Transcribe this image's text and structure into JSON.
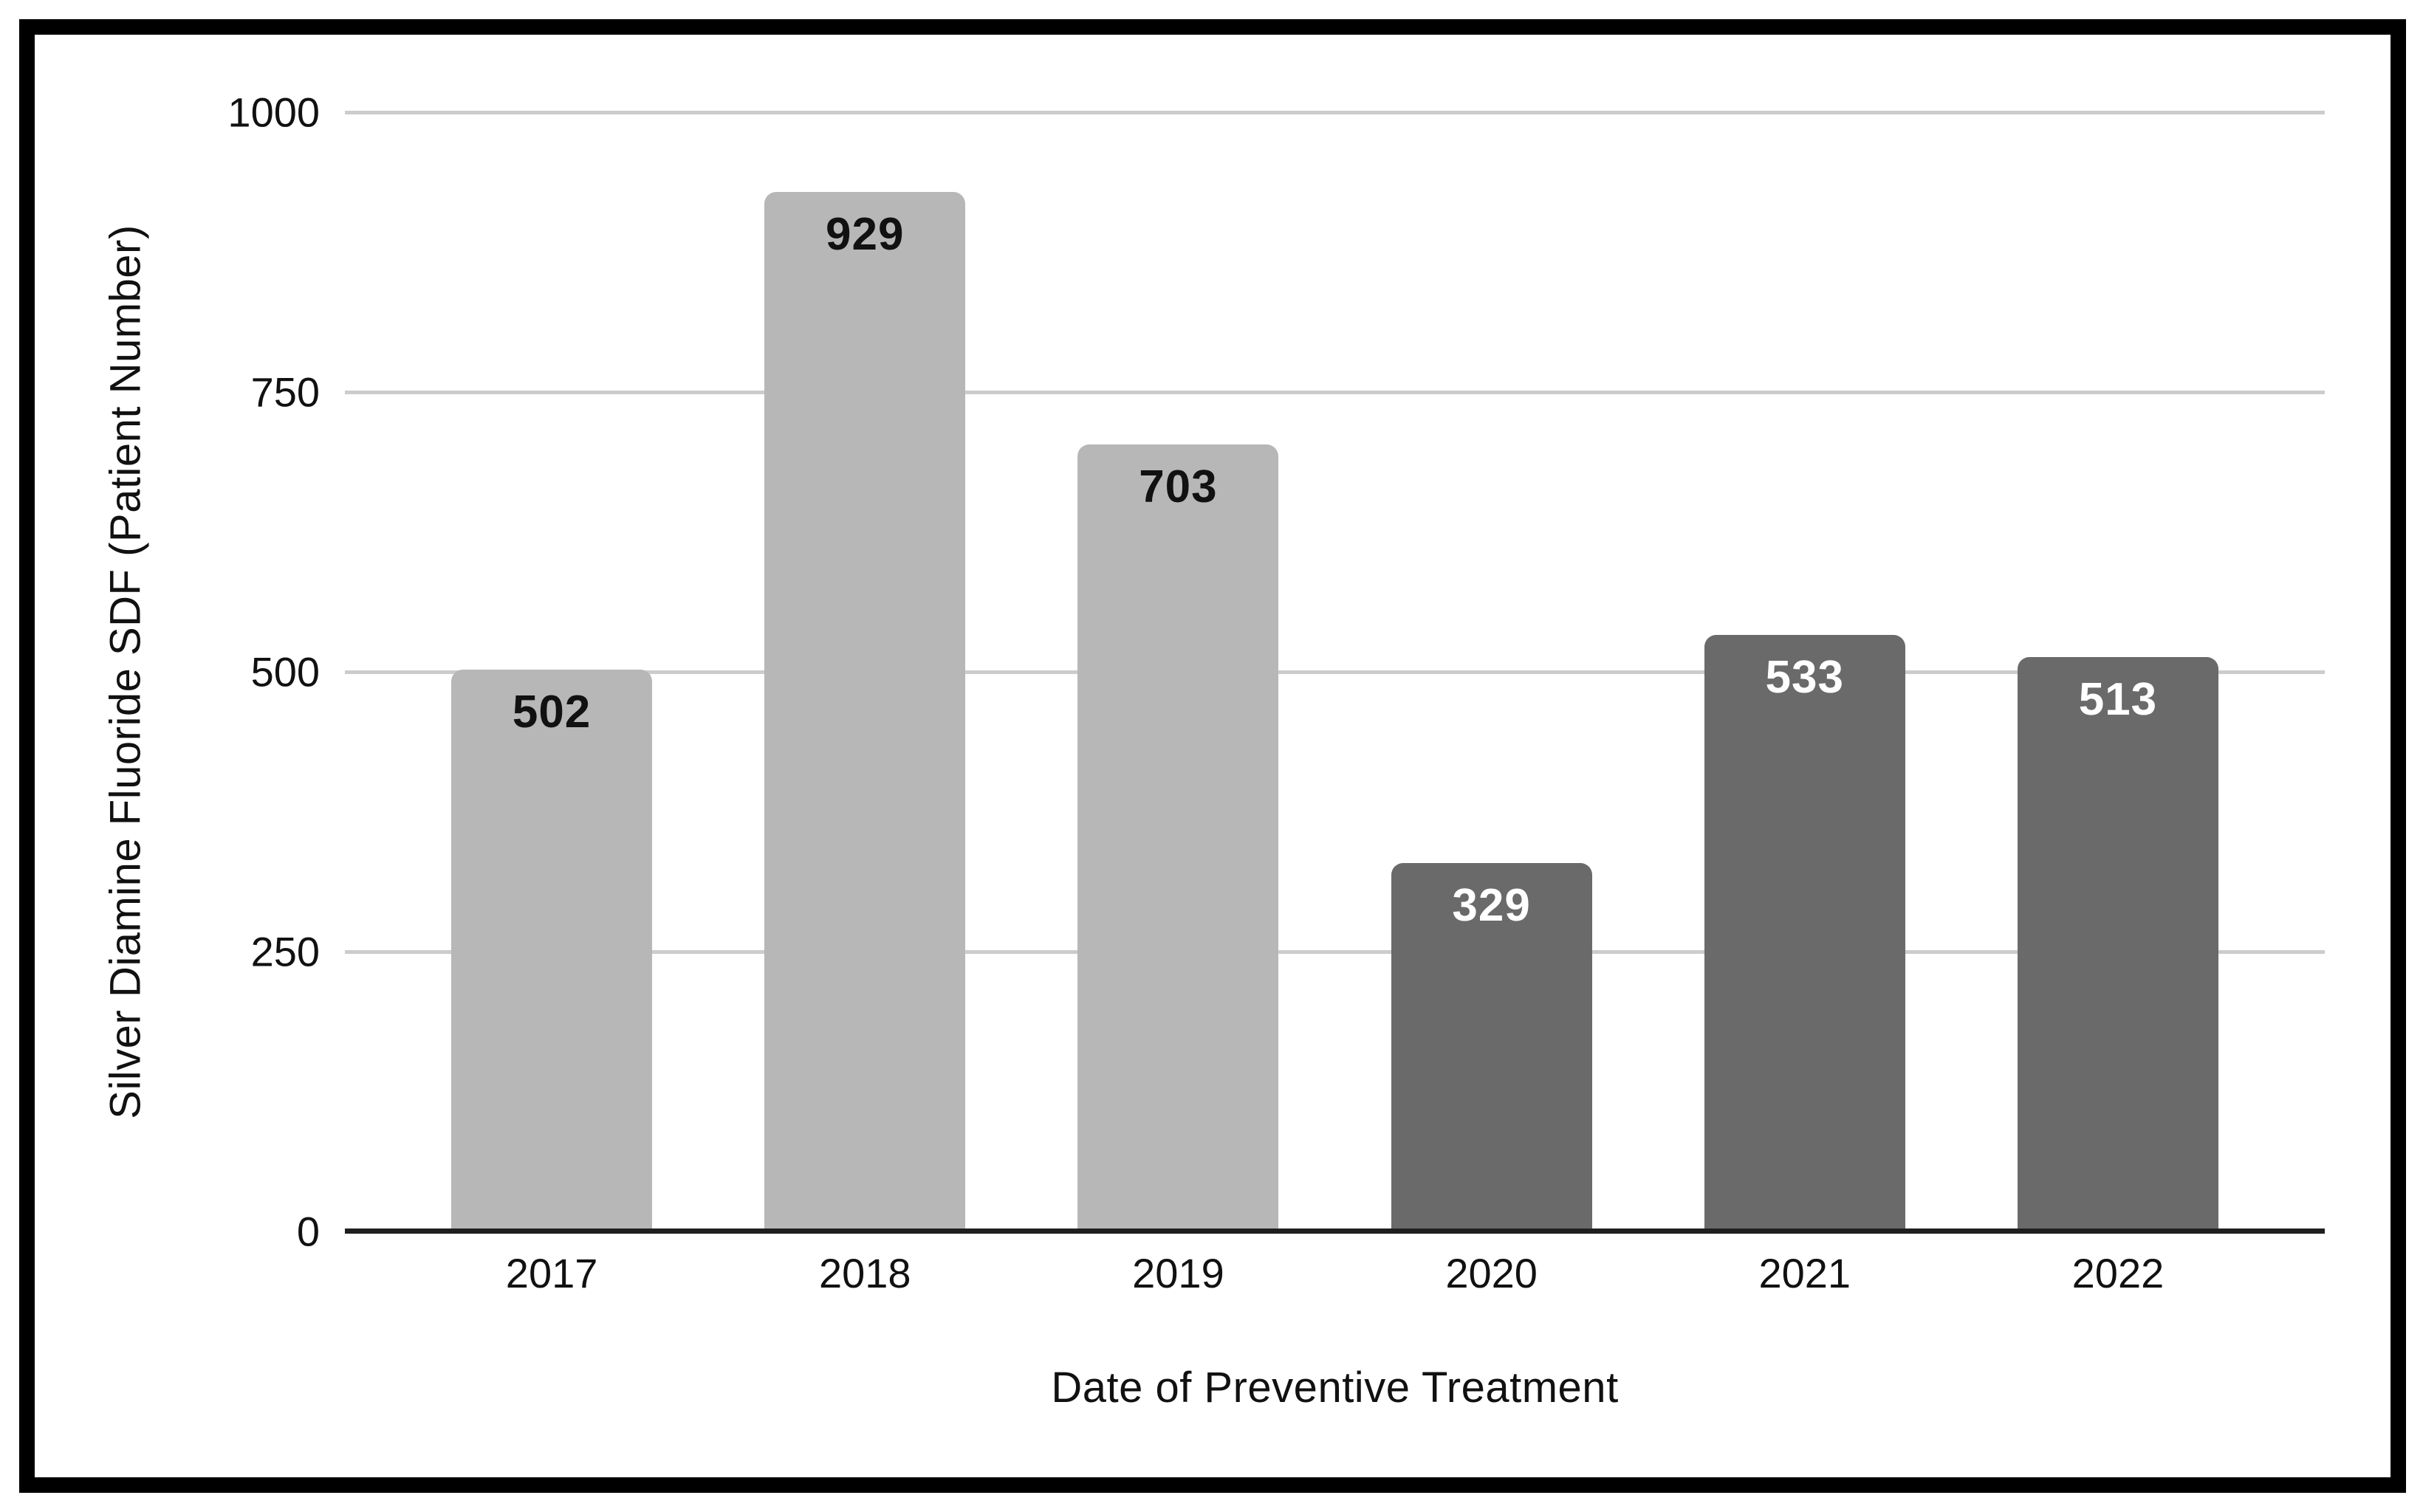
{
  "figure": {
    "background_color": "#ffffff",
    "frame_border_color": "#000000",
    "text_color": "#111111"
  },
  "chart_data": {
    "type": "bar",
    "title": "",
    "xlabel": "Date of Preventive Treatment",
    "ylabel": "Silver Diamine Fluoride SDF (Patient Number)",
    "categories": [
      "2017",
      "2018",
      "2019",
      "2020",
      "2021",
      "2022"
    ],
    "values": [
      502,
      929,
      703,
      329,
      533,
      513
    ],
    "data_labels": [
      "502",
      "929",
      "703",
      "329",
      "533",
      "513"
    ],
    "bar_colors": [
      "#b7b7b7",
      "#b7b7b7",
      "#b7b7b7",
      "#6a6a6a",
      "#6a6a6a",
      "#6a6a6a"
    ],
    "data_label_colors": [
      "#111111",
      "#111111",
      "#111111",
      "#ffffff",
      "#ffffff",
      "#ffffff"
    ],
    "ylim": [
      0,
      1000
    ],
    "yticks": [
      0,
      250,
      500,
      750,
      1000
    ],
    "grid": "horizontal",
    "gridline_color": "#cccccc",
    "axis_line_color": "#1f1f1f",
    "legend": "none"
  }
}
